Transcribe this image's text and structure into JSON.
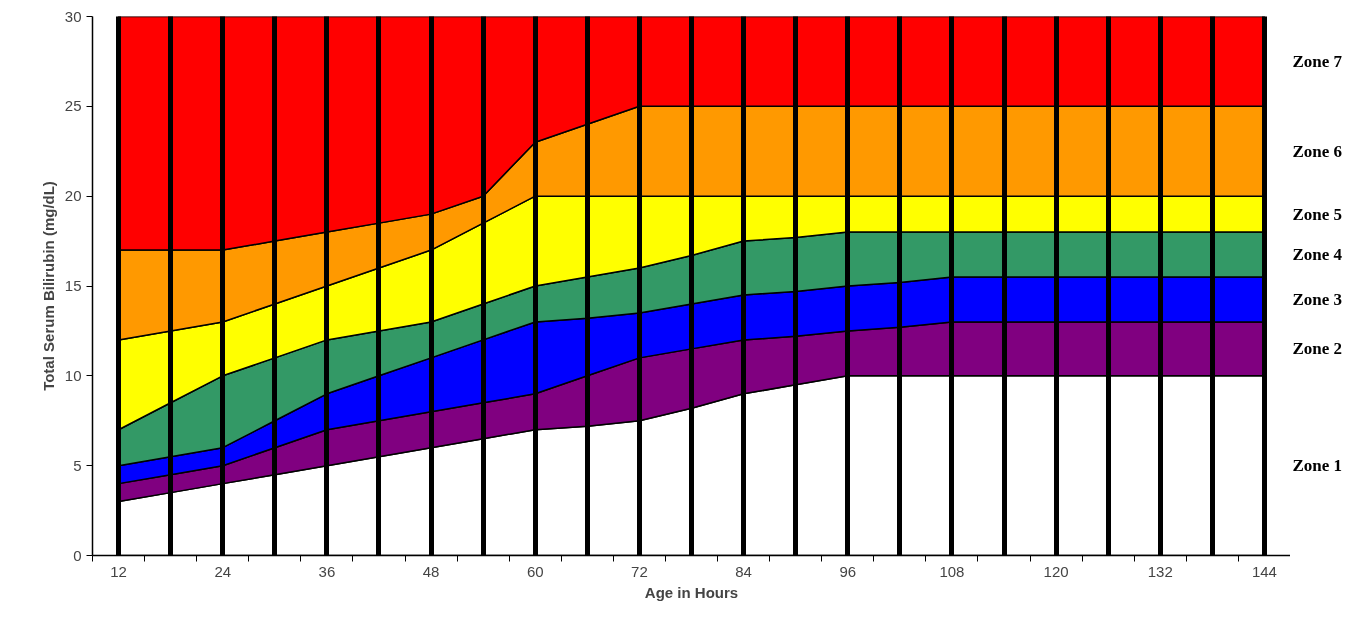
{
  "chart_data": {
    "type": "area",
    "stacked": true,
    "xlabel": "Age in Hours",
    "ylabel": "Total Serum Bilirubin (mg/dL)",
    "categories": [
      "12",
      null,
      "24",
      null,
      "36",
      null,
      "48",
      null,
      "60",
      null,
      "72",
      null,
      "84",
      null,
      "96",
      null,
      "108",
      null,
      "120",
      null,
      "132",
      null,
      "144"
    ],
    "series": [
      {
        "name": "Zone 1",
        "color": "#ffffff",
        "values": [
          3,
          3.5,
          4,
          4.5,
          5,
          5.5,
          6,
          6.5,
          7,
          7.2,
          7.5,
          8.2,
          9,
          9.5,
          10,
          10,
          10,
          10,
          10,
          10,
          10,
          10,
          10
        ]
      },
      {
        "name": "Zone 2",
        "color": "#800080",
        "values": [
          1,
          1,
          1,
          1.5,
          2,
          2,
          2,
          2,
          2,
          2.8,
          3.5,
          3.3,
          3,
          2.7,
          2.5,
          2.7,
          3,
          3,
          3,
          3,
          3,
          3,
          3
        ]
      },
      {
        "name": "Zone 3",
        "color": "#0000ff",
        "values": [
          1,
          1,
          1,
          1.5,
          2,
          2.5,
          3,
          3.5,
          4,
          3.2,
          2.5,
          2.5,
          2.5,
          2.5,
          2.5,
          2.5,
          2.5,
          2.5,
          2.5,
          2.5,
          2.5,
          2.5,
          2.5
        ]
      },
      {
        "name": "Zone 4",
        "color": "#339966",
        "values": [
          2,
          3,
          4,
          3.5,
          3,
          2.5,
          2,
          2,
          2,
          2.3,
          2.5,
          2.7,
          3,
          3,
          3,
          2.8,
          2.5,
          2.5,
          2.5,
          2.5,
          2.5,
          2.5,
          2.5
        ]
      },
      {
        "name": "Zone 5",
        "color": "#ffff00",
        "values": [
          5,
          4,
          3,
          3,
          3,
          3.5,
          4,
          4.5,
          5,
          4.5,
          4,
          3.3,
          2.5,
          2.3,
          2,
          2,
          2,
          2,
          2,
          2,
          2,
          2,
          2
        ]
      },
      {
        "name": "Zone 6",
        "color": "#ff9900",
        "values": [
          5,
          4.5,
          4,
          3.5,
          3,
          2.5,
          2,
          1.5,
          3,
          4,
          5,
          5,
          5,
          5,
          5,
          5,
          5,
          5,
          5,
          5,
          5,
          5,
          5
        ]
      },
      {
        "name": "Zone 7",
        "color": "#ff0000",
        "values": [
          13,
          13,
          13,
          12.5,
          12,
          11.5,
          11,
          10,
          7,
          6,
          5,
          5,
          5,
          5,
          5,
          5,
          5,
          5,
          5,
          5,
          5,
          5,
          5
        ]
      }
    ],
    "ylim": [
      0,
      30
    ],
    "yticks": [
      0,
      5,
      10,
      15,
      20,
      25,
      30
    ],
    "grid": "x"
  }
}
